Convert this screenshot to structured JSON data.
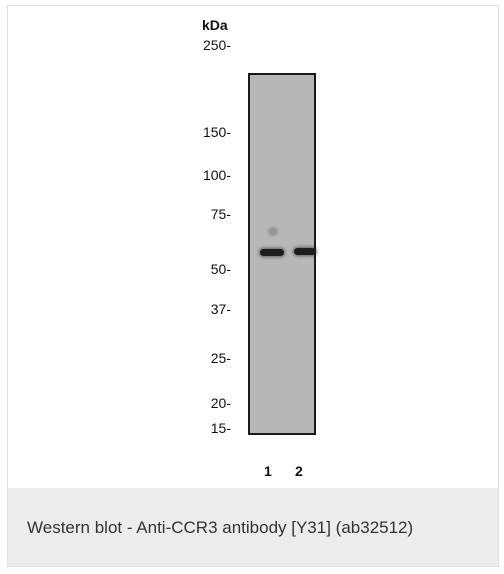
{
  "figure": {
    "unit_label": "kDa",
    "markers": [
      "250-",
      "150-",
      "100-",
      "75-",
      "50-",
      "37-",
      "25-",
      "20-",
      "15-"
    ],
    "lanes": [
      "1",
      "2"
    ],
    "caption": "Western blot - Anti-CCR3 antibody [Y31] (ab32512)"
  },
  "colors": {
    "membrane": "#b7b7b7",
    "band": "#1c1c1c",
    "caption_background": "#ececec"
  }
}
